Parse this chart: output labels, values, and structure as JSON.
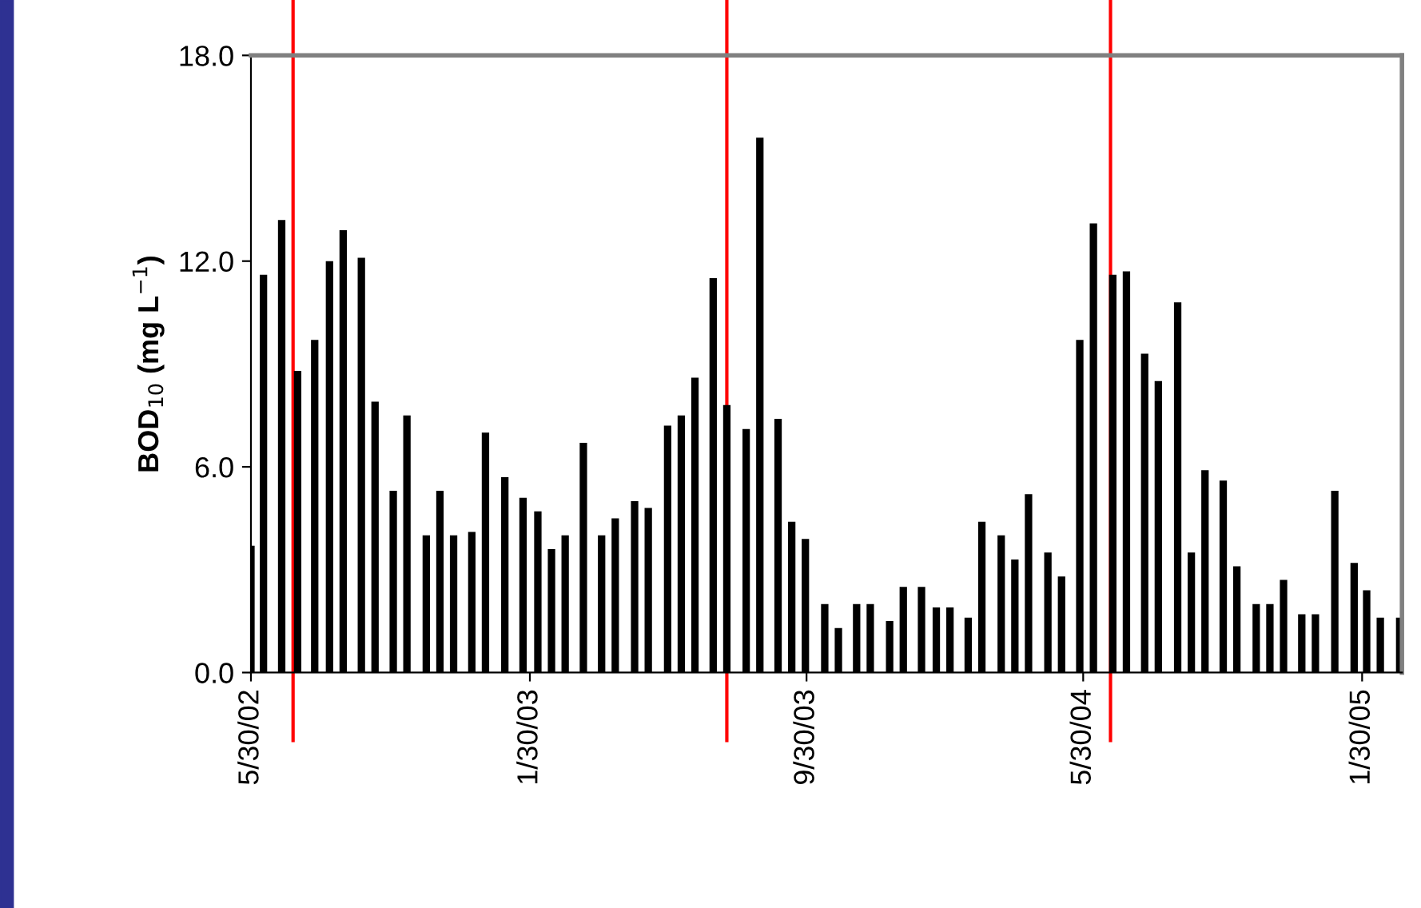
{
  "chart_data": {
    "type": "bar",
    "ylabel": "BOD$_{10}$ (mg L$^{−1}$)",
    "x": [
      "2002-05-30",
      "2002-06-10",
      "2002-06-26",
      "2002-07-10",
      "2002-07-25",
      "2002-08-07",
      "2002-08-19",
      "2002-09-04",
      "2002-09-16",
      "2002-10-02",
      "2002-10-14",
      "2002-10-31",
      "2002-11-12",
      "2002-11-24",
      "2002-12-10",
      "2002-12-22",
      "2003-01-08",
      "2003-01-24",
      "2003-02-06",
      "2003-02-18",
      "2003-03-02",
      "2003-03-18",
      "2003-04-03",
      "2003-04-15",
      "2003-05-02",
      "2003-05-14",
      "2003-05-31",
      "2003-06-12",
      "2003-06-24",
      "2003-07-10",
      "2003-07-22",
      "2003-08-08",
      "2003-08-20",
      "2003-09-05",
      "2003-09-17",
      "2003-09-29",
      "2003-10-16",
      "2003-10-28",
      "2003-11-13",
      "2003-11-25",
      "2003-12-12",
      "2003-12-24",
      "2004-01-09",
      "2004-01-22",
      "2004-02-03",
      "2004-02-19",
      "2004-03-02",
      "2004-03-19",
      "2004-03-31",
      "2004-04-12",
      "2004-04-29",
      "2004-05-11",
      "2004-05-27",
      "2004-06-08",
      "2004-06-25",
      "2004-07-07",
      "2004-07-23",
      "2004-08-04",
      "2004-08-21",
      "2004-09-02",
      "2004-09-14",
      "2004-09-30",
      "2004-10-12",
      "2004-10-29",
      "2004-11-10",
      "2004-11-22",
      "2004-12-08",
      "2004-12-20",
      "2005-01-06",
      "2005-01-23",
      "2005-02-03",
      "2005-02-15",
      "2005-03-04"
    ],
    "values": [
      3.7,
      11.6,
      13.2,
      8.8,
      9.7,
      12.0,
      12.9,
      12.1,
      7.9,
      5.3,
      7.5,
      4.0,
      5.3,
      4.0,
      4.1,
      7.0,
      5.7,
      5.1,
      4.7,
      3.6,
      4.0,
      6.7,
      4.0,
      4.5,
      5.0,
      4.8,
      7.2,
      7.5,
      8.6,
      11.5,
      7.8,
      7.1,
      15.6,
      7.4,
      4.4,
      3.9,
      2.0,
      1.3,
      2.0,
      2.0,
      1.5,
      2.5,
      2.5,
      1.9,
      1.9,
      1.6,
      4.4,
      4.0,
      3.3,
      5.2,
      3.5,
      2.8,
      9.7,
      13.1,
      11.6,
      11.7,
      9.3,
      8.5,
      10.8,
      3.5,
      5.9,
      5.6,
      3.1,
      2.0,
      2.0,
      2.7,
      1.7,
      1.7,
      5.3,
      3.2,
      2.4,
      1.6,
      1.6
    ],
    "color": "#000000",
    "xlim": [
      "2002-05-30",
      "2005-03-06"
    ],
    "xticks": [
      {
        "value": "2002-05-30",
        "label": "5/30/02"
      },
      {
        "value": "2003-01-30",
        "label": "1/30/03"
      },
      {
        "value": "2003-09-30",
        "label": "9/30/03"
      },
      {
        "value": "2004-05-30",
        "label": "5/30/04"
      },
      {
        "value": "2005-01-30",
        "label": "1/30/05"
      }
    ],
    "ylim": [
      0,
      18
    ],
    "yticks": [
      {
        "value": 0,
        "label": "0.0"
      },
      {
        "value": 6,
        "label": "6.0"
      },
      {
        "value": 12,
        "label": "12.0"
      },
      {
        "value": 18,
        "label": "18.0"
      }
    ],
    "ref_lines": [
      {
        "axis": "x",
        "value": "2002-07-06",
        "color": "#ff0000"
      },
      {
        "axis": "x",
        "value": "2003-07-22",
        "color": "#ff0000"
      },
      {
        "axis": "x",
        "value": "2004-06-23",
        "color": "#ff0000"
      }
    ],
    "grid": false,
    "legend": false
  }
}
